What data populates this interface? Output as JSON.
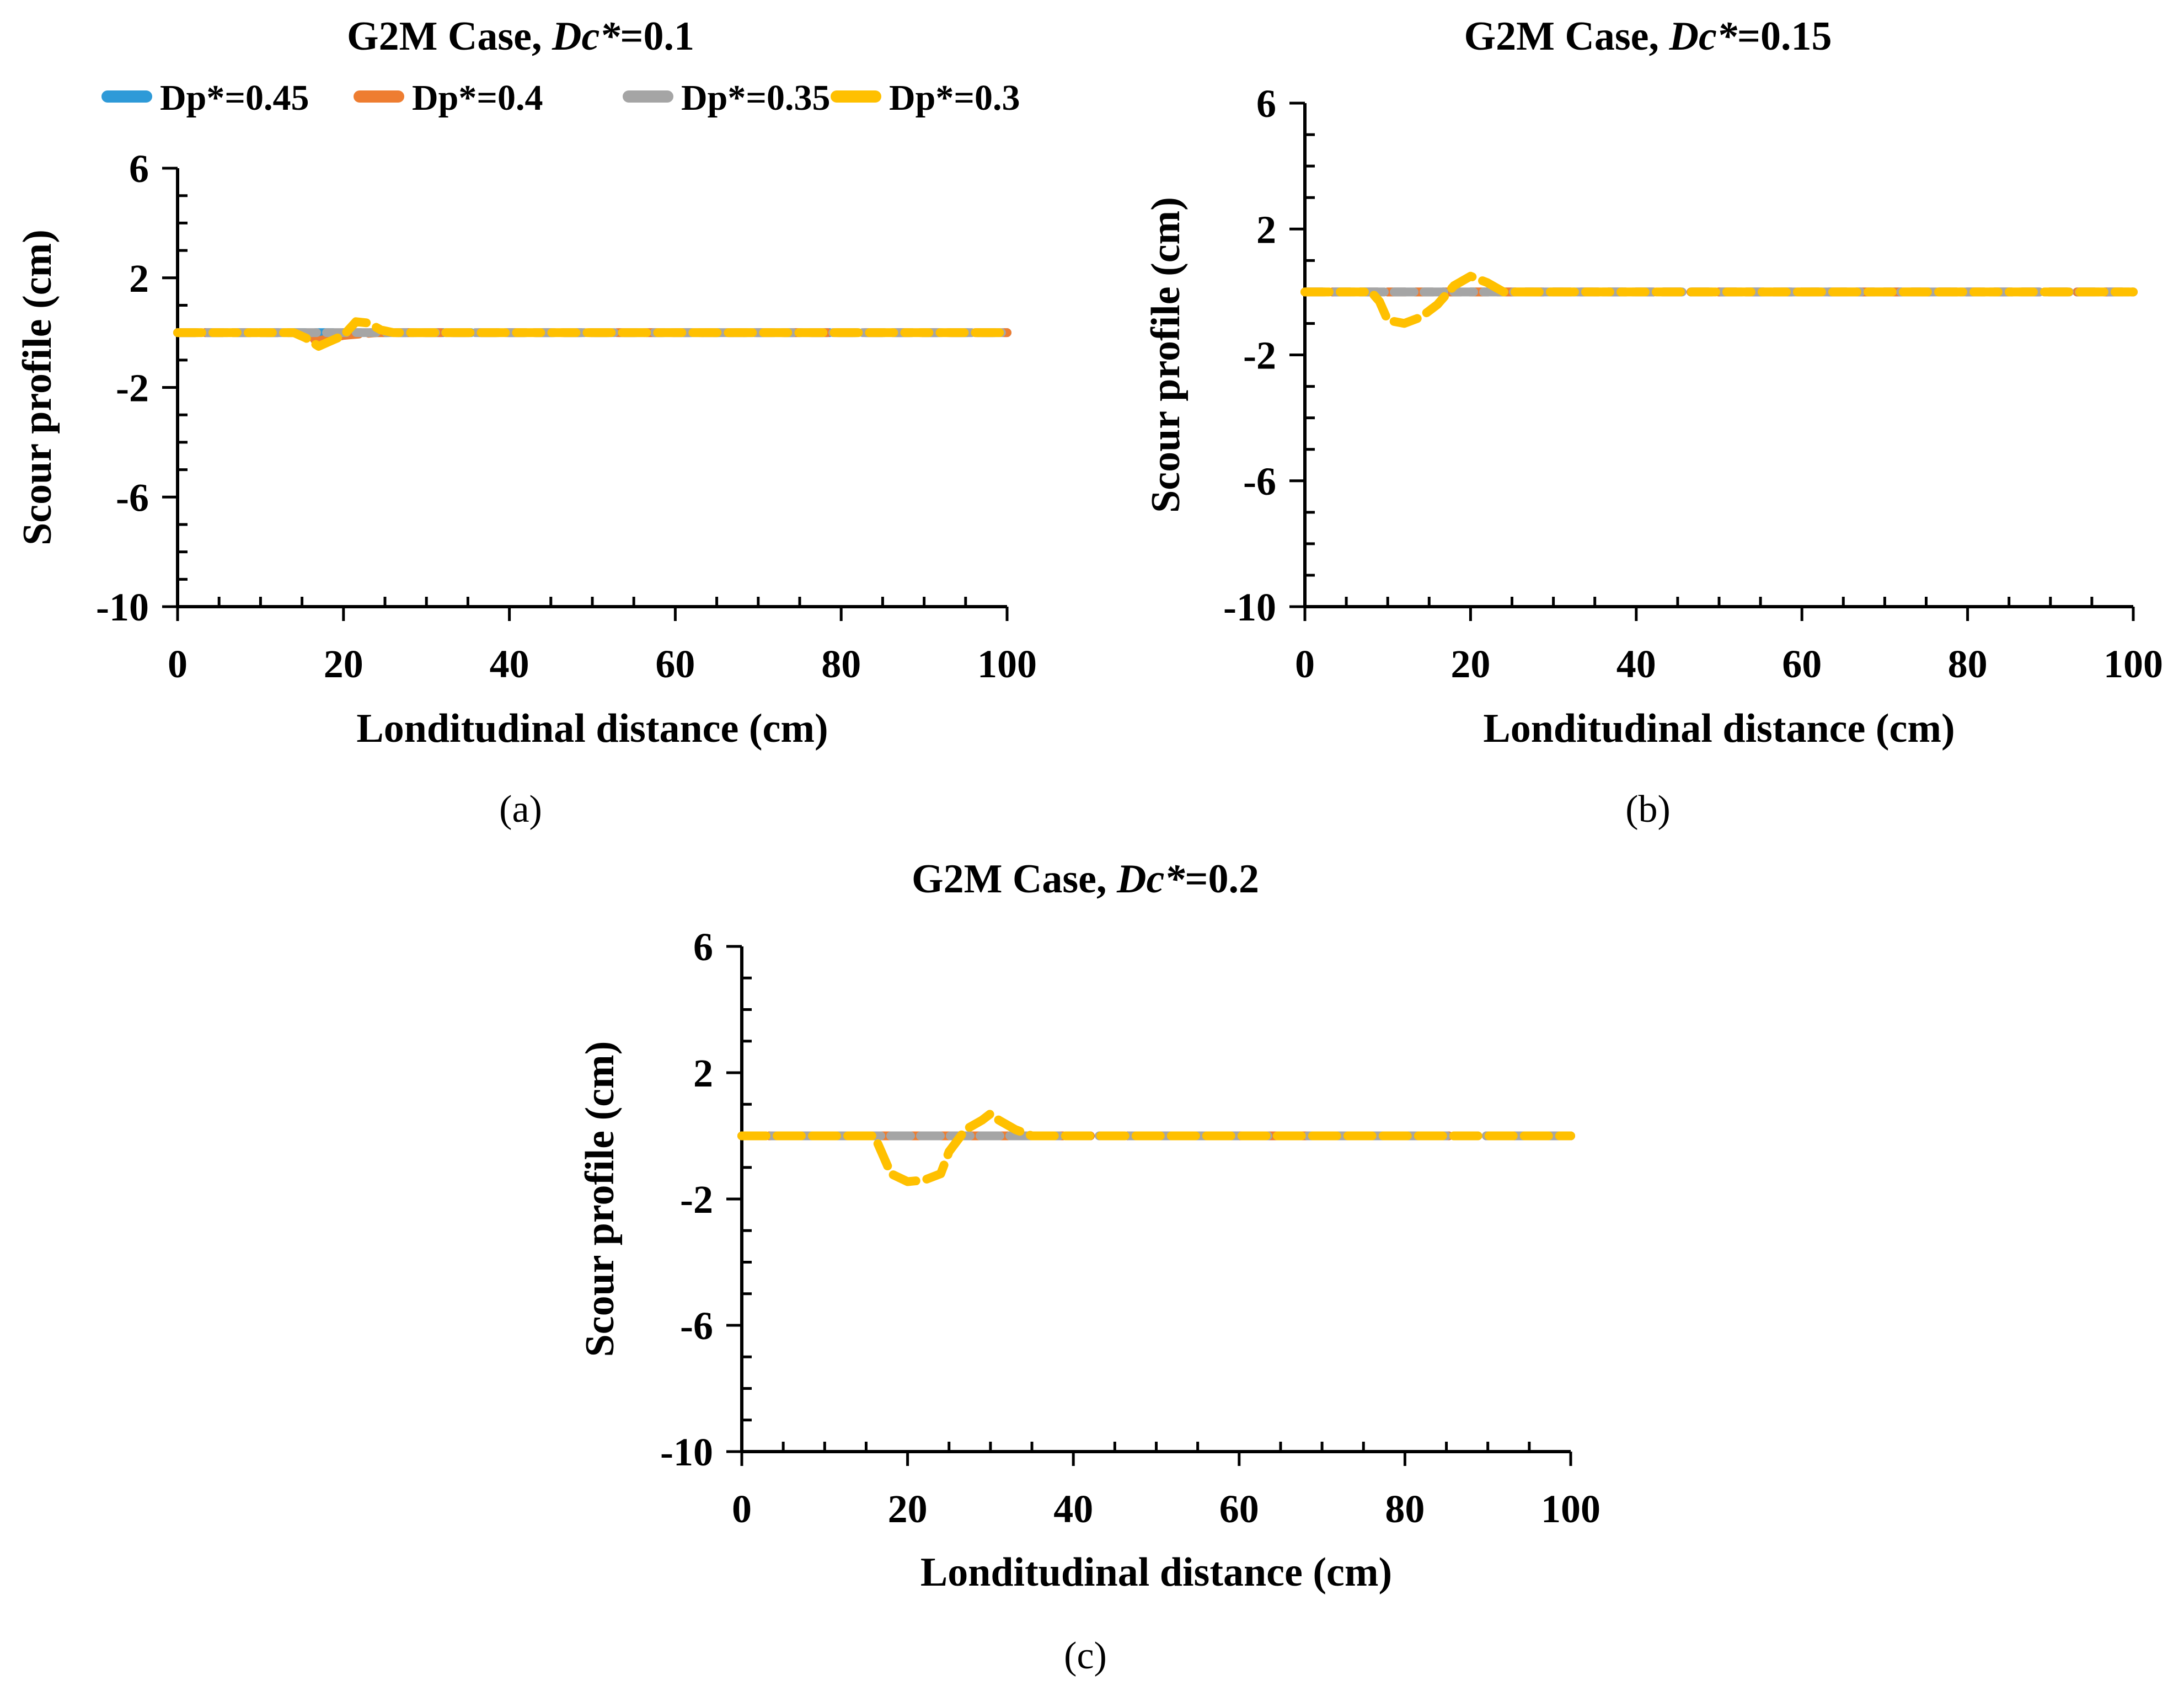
{
  "colors": {
    "Dp*=0.45": "#2E9AD8",
    "Dp*=0.4": "#EE7D31",
    "Dp*=0.35": "#A5A5A5",
    "Dp*=0.3": "#FFC000"
  },
  "chart_data": [
    {
      "type": "line",
      "panel_label": "(a)",
      "title_prefix": "G2M Case, ",
      "title_var": "Dc*",
      "title_value": "=0.1",
      "xlabel": "Londitudinal distance (cm)",
      "ylabel": "Scour profile (cm)",
      "xlim": [
        0,
        100
      ],
      "ylim": [
        -10,
        6
      ],
      "xticks": [
        0,
        20,
        40,
        60,
        80,
        100
      ],
      "yticks": [
        -10,
        -6,
        -2,
        2,
        6
      ],
      "legend": [
        "Dp*=0.45",
        "Dp*=0.4",
        "Dp*=0.35",
        "Dp*=0.3"
      ],
      "legend_position": "top",
      "series": [
        {
          "name": "Dp*=0.45",
          "x": [
            0,
            100
          ],
          "y": [
            0,
            0
          ]
        },
        {
          "name": "Dp*=0.4",
          "x": [
            0,
            14,
            17,
            20,
            24,
            100
          ],
          "y": [
            0,
            0,
            -0.3,
            -0.1,
            0,
            0
          ]
        },
        {
          "name": "Dp*=0.35",
          "x": [
            0,
            100
          ],
          "y": [
            0,
            0
          ]
        },
        {
          "name": "Dp*=0.3",
          "x": [
            0,
            14,
            15.5,
            17,
            18.5,
            20,
            21.5,
            23,
            24.5,
            26,
            28,
            100
          ],
          "y": [
            0,
            0,
            -0.2,
            -0.5,
            -0.3,
            -0.1,
            0.4,
            0.35,
            0.1,
            0,
            0,
            0
          ]
        }
      ]
    },
    {
      "type": "line",
      "panel_label": "(b)",
      "title_prefix": "G2M Case, ",
      "title_var": "Dc*",
      "title_value": "=0.15",
      "xlabel": "Londitudinal distance (cm)",
      "ylabel": "Scour profile (cm)",
      "xlim": [
        0,
        100
      ],
      "ylim": [
        -10,
        6
      ],
      "xticks": [
        0,
        20,
        40,
        60,
        80,
        100
      ],
      "yticks": [
        -10,
        -6,
        -2,
        2,
        6
      ],
      "series": [
        {
          "name": "Dp*=0.45",
          "x": [
            0,
            100
          ],
          "y": [
            0,
            0
          ]
        },
        {
          "name": "Dp*=0.4",
          "x": [
            0,
            100
          ],
          "y": [
            0,
            0
          ]
        },
        {
          "name": "Dp*=0.35",
          "x": [
            0,
            100
          ],
          "y": [
            0,
            0
          ]
        },
        {
          "name": "Dp*=0.3",
          "x": [
            0,
            8,
            9,
            10,
            12,
            14,
            16,
            18,
            20,
            22,
            24,
            100
          ],
          "y": [
            0,
            0,
            -0.3,
            -0.9,
            -1.0,
            -0.8,
            -0.4,
            0.2,
            0.5,
            0.3,
            0,
            0
          ]
        }
      ]
    },
    {
      "type": "line",
      "panel_label": "(c)",
      "title_prefix": "G2M Case, ",
      "title_var": "Dc*",
      "title_value": "=0.2",
      "xlabel": "Londitudinal distance (cm)",
      "ylabel": "Scour profile (cm)",
      "xlim": [
        0,
        100
      ],
      "ylim": [
        -10,
        6
      ],
      "xticks": [
        0,
        20,
        40,
        60,
        80,
        100
      ],
      "yticks": [
        -10,
        -6,
        -2,
        2,
        6
      ],
      "series": [
        {
          "name": "Dp*=0.45",
          "x": [
            0,
            100
          ],
          "y": [
            0,
            0
          ]
        },
        {
          "name": "Dp*=0.4",
          "x": [
            0,
            100
          ],
          "y": [
            0,
            0
          ]
        },
        {
          "name": "Dp*=0.35",
          "x": [
            0,
            100
          ],
          "y": [
            0,
            0
          ]
        },
        {
          "name": "Dp*=0.3",
          "x": [
            0,
            16,
            17,
            18,
            20,
            22,
            24,
            25,
            27,
            29,
            30,
            31,
            33,
            35,
            100
          ],
          "y": [
            0,
            0,
            -0.6,
            -1.2,
            -1.45,
            -1.4,
            -1.2,
            -0.5,
            0.2,
            0.5,
            0.7,
            0.5,
            0.2,
            0,
            0
          ]
        }
      ]
    }
  ]
}
